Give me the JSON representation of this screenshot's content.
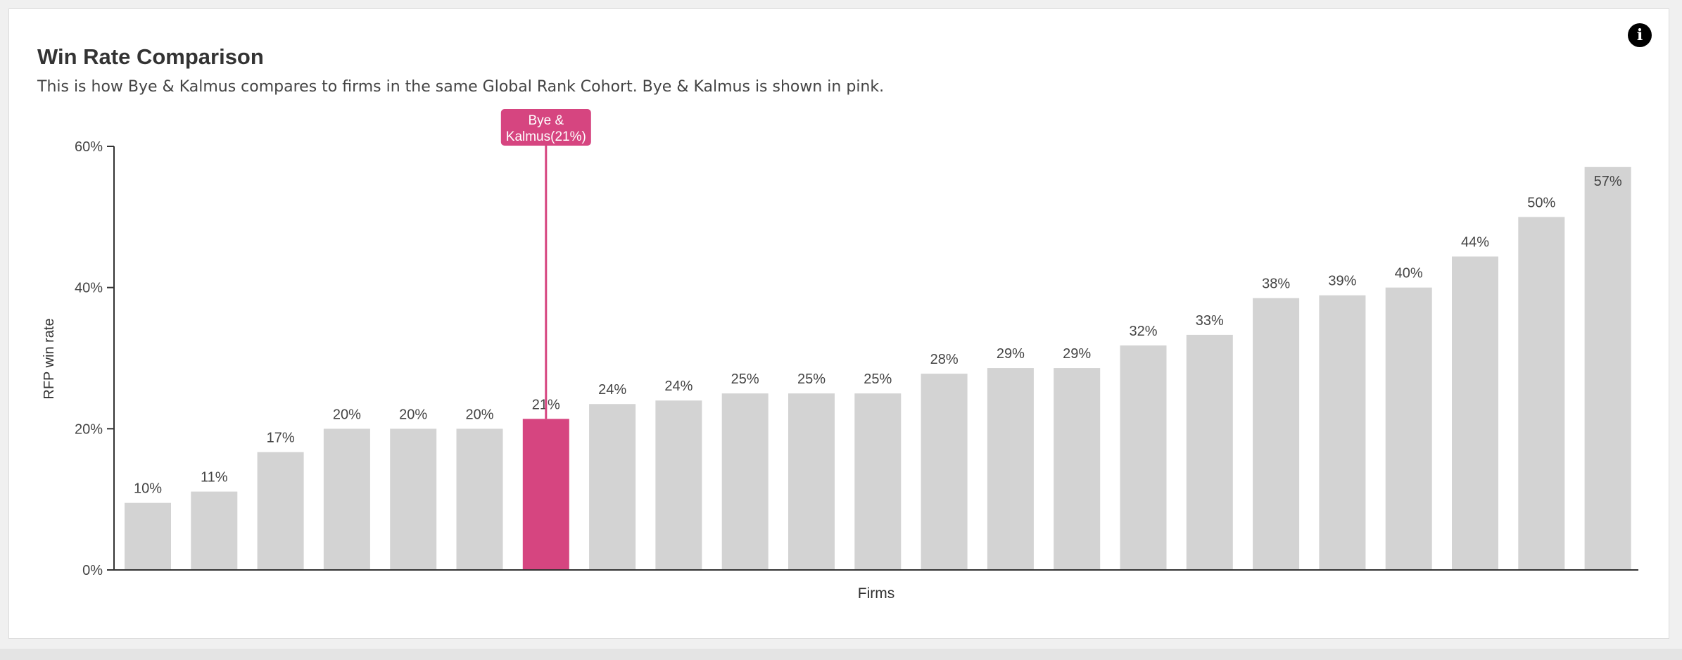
{
  "header": {
    "title": "Win Rate Comparison",
    "subtitle": "This is how Bye & Kalmus compares to firms in the same Global Rank Cohort. Bye & Kalmus is shown in pink.",
    "info_icon": "info-icon"
  },
  "colors": {
    "bar_default": "#d3d3d3",
    "bar_highlight": "#d64580",
    "axis": "#333333",
    "label_text": "#444444"
  },
  "chart_data": {
    "type": "bar",
    "title": "",
    "xlabel": "Firms",
    "ylabel": "RFP win rate",
    "ylim": [
      0,
      60
    ],
    "yticks": [
      {
        "value": 0,
        "label": "0%"
      },
      {
        "value": 20,
        "label": "20%"
      },
      {
        "value": 40,
        "label": "40%"
      },
      {
        "value": 60,
        "label": "60%"
      }
    ],
    "grid": false,
    "highlight_index": 6,
    "highlight_label_line1": "Bye &",
    "highlight_label_line2": "Kalmus(21%)",
    "values": [
      9.5,
      11.1,
      16.7,
      20,
      20,
      20,
      21.4,
      23.5,
      24,
      25,
      25,
      25,
      27.8,
      28.6,
      28.6,
      31.8,
      33.3,
      38.5,
      38.9,
      40,
      44.4,
      50,
      57.1
    ],
    "data_labels": [
      "10%",
      "11%",
      "17%",
      "20%",
      "20%",
      "20%",
      "21%",
      "24%",
      "24%",
      "25%",
      "25%",
      "25%",
      "28%",
      "29%",
      "29%",
      "32%",
      "33%",
      "38%",
      "39%",
      "40%",
      "44%",
      "50%",
      "57%"
    ]
  }
}
